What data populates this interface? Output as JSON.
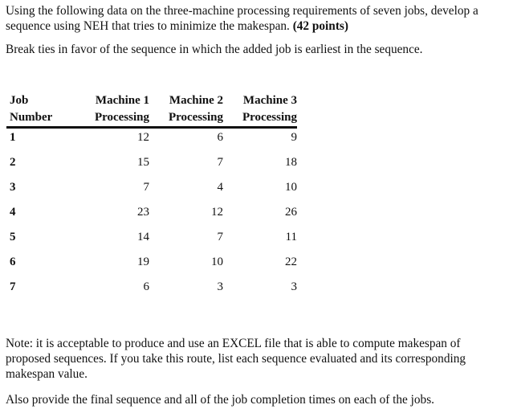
{
  "intro": {
    "line1": "Using the following data on the three-machine processing requirements of seven jobs, develop a",
    "line2": "sequence using NEH that tries to minimize the makespan. ",
    "points": "(42 points)",
    "tie_break": "Break ties in favor of the sequence in which the added job is earliest in the sequence."
  },
  "table": {
    "headers": [
      {
        "line1": "Job",
        "line2": "Number"
      },
      {
        "line1": "Machine 1",
        "line2": "Processing"
      },
      {
        "line1": "Machine 2",
        "line2": "Processing"
      },
      {
        "line1": "Machine 3",
        "line2": "Processing"
      }
    ],
    "rows": [
      [
        "1",
        "12",
        "6",
        "9"
      ],
      [
        "2",
        "15",
        "7",
        "18"
      ],
      [
        "3",
        "7",
        "4",
        "10"
      ],
      [
        "4",
        "23",
        "12",
        "26"
      ],
      [
        "5",
        "14",
        "7",
        "11"
      ],
      [
        "6",
        "19",
        "10",
        "22"
      ],
      [
        "7",
        "6",
        "3",
        "3"
      ]
    ]
  },
  "note": {
    "line1": "Note: it is acceptable to produce and use an EXCEL file that is able to compute makespan of",
    "line2": "proposed sequences.  If you take this route, list each sequence evaluated and its corresponding",
    "line3": "makespan value.",
    "final": "Also provide the final sequence and all of the job completion times on each of the jobs."
  }
}
